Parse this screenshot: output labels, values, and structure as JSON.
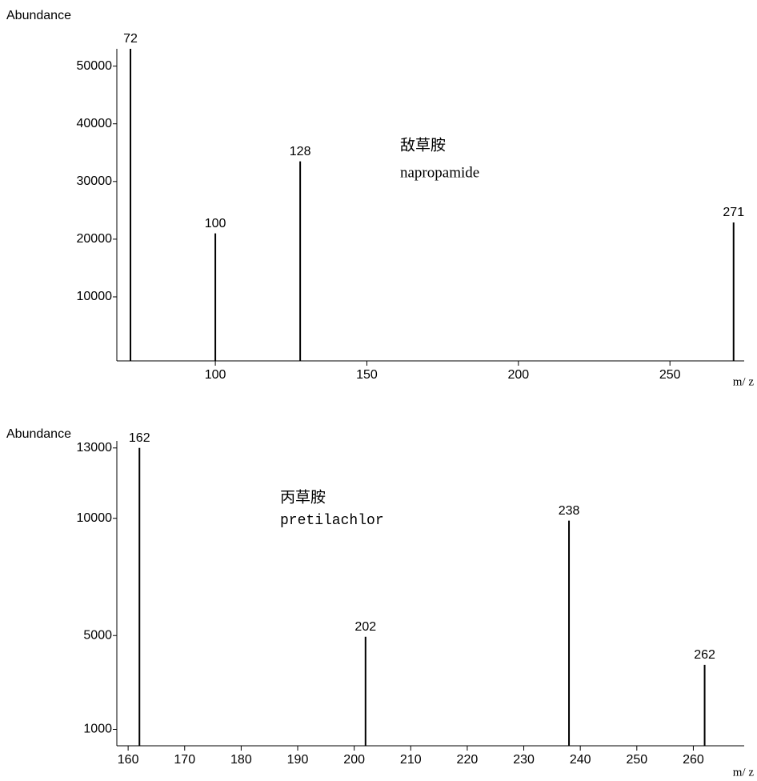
{
  "chart_data": [
    {
      "type": "bar",
      "y_label": "Abundance",
      "x_label": "m/ z",
      "annotations": [
        "敌草胺",
        "napropamide"
      ],
      "x": [
        72,
        100,
        128,
        271
      ],
      "values": [
        53000,
        21000,
        33500,
        22900
      ],
      "color": "#000000",
      "xlim": [
        67.5,
        274.5
      ],
      "xticks": [
        100,
        150,
        200,
        250
      ],
      "ylim": [
        -1100,
        53000
      ],
      "yticks": [
        10000,
        20000,
        30000,
        40000,
        50000
      ]
    },
    {
      "type": "bar",
      "y_label": "Abundance",
      "x_label": "m/ z",
      "annotations": [
        "丙草胺",
        "pretilachlor"
      ],
      "x": [
        162,
        202,
        238,
        262
      ],
      "values": [
        13000,
        4950,
        9900,
        3750
      ],
      "color": "#000000",
      "xlim": [
        158,
        269
      ],
      "xticks": [
        160,
        170,
        180,
        190,
        200,
        210,
        220,
        230,
        240,
        250,
        260
      ],
      "ylim": [
        300,
        13300
      ],
      "yticks": [
        1000,
        5000,
        10000,
        13000
      ]
    }
  ]
}
